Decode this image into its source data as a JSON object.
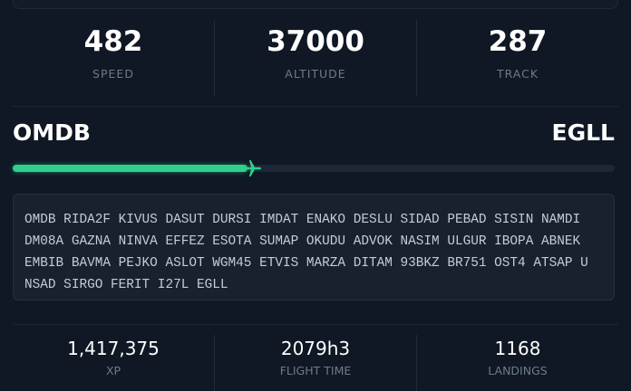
{
  "top_stats": [
    {
      "value": "482",
      "label": "SPEED"
    },
    {
      "value": "37000",
      "label": "ALTITUDE"
    },
    {
      "value": "287",
      "label": "TRACK"
    }
  ],
  "route": {
    "origin": "OMDB",
    "destination": "EGLL",
    "progress": 0.39,
    "flight_plan": "OMDB RIDA2F KIVUS DASUT DURSI IMDAT ENAKO DESLU SIDAD PEBAD SISIN NAMDI DM08A GAZNA NINVA EFFEZ ESOTA SUMAP OKUDU ADVOK NASIM ULGUR IBOPA ABNEK EMBIB BAVMA PEJKO ASLOT WGM45 ETVIS MARZA DITAM 93BKZ BR751 OST4 ATSAP UNSAD SIRGO FERIT I27L EGLL"
  },
  "bottom_stats": [
    {
      "value": "1,417,375",
      "label": "XP"
    },
    {
      "value": "2079h3",
      "label": "FLIGHT TIME"
    },
    {
      "value": "1168",
      "label": "LANDINGS"
    }
  ]
}
